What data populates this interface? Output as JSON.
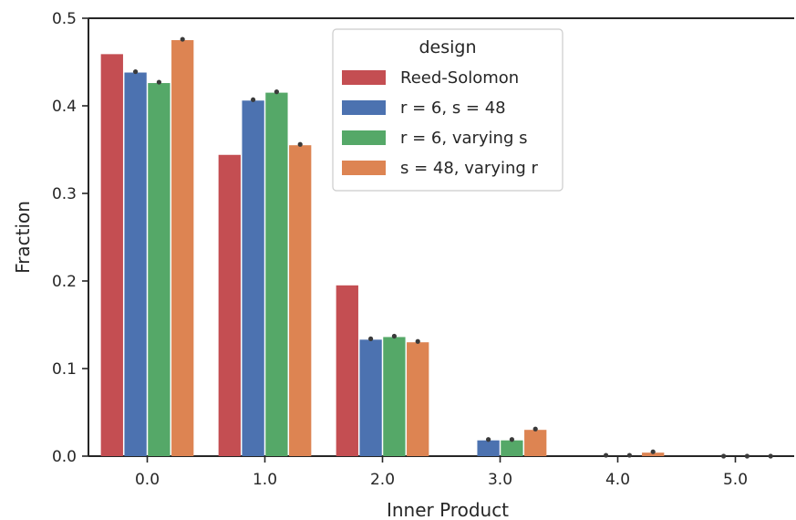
{
  "chart_data": {
    "type": "bar",
    "xlabel": "Inner Product",
    "ylabel": "Fraction",
    "categories": [
      "0.0",
      "1.0",
      "2.0",
      "3.0",
      "4.0",
      "5.0"
    ],
    "ylim": [
      0,
      0.5
    ],
    "yticks": [
      "0.0",
      "0.1",
      "0.2",
      "0.3",
      "0.4",
      "0.5"
    ],
    "legend": {
      "title": "design",
      "position": "top-center"
    },
    "grid": false,
    "series": [
      {
        "name": "Reed-Solomon",
        "color": "#c44e52",
        "values": [
          0.459,
          0.344,
          0.195,
          0.0,
          0.0,
          0.0
        ]
      },
      {
        "name": "r = 6, s = 48",
        "color": "#4c72b0",
        "values": [
          0.438,
          0.406,
          0.133,
          0.018,
          0.0,
          0.0
        ]
      },
      {
        "name": "r = 6, varying s",
        "color": "#55a868",
        "values": [
          0.426,
          0.415,
          0.136,
          0.018,
          0.0,
          0.0
        ]
      },
      {
        "name": "s = 48, varying r",
        "color": "#dd8452",
        "values": [
          0.475,
          0.355,
          0.13,
          0.03,
          0.004,
          0.0
        ]
      }
    ],
    "markers": {
      "r = 6, s = 48": [
        0.439,
        0.407,
        0.134,
        0.019,
        0.001,
        0.0
      ],
      "r = 6, varying s": [
        0.427,
        0.416,
        0.137,
        0.019,
        0.001,
        0.0
      ],
      "s = 48, varying r": [
        0.476,
        0.356,
        0.131,
        0.031,
        0.005,
        0.0
      ]
    },
    "error_marker_color": "#3a3a3a"
  }
}
